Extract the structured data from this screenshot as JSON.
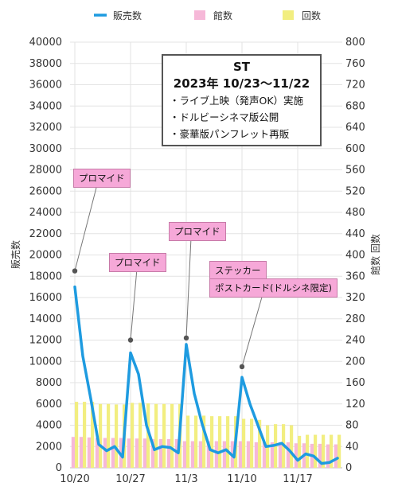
{
  "chart_data": {
    "type": "bar+line",
    "title": "ST",
    "subtitle": "2023年 10/23〜11/22",
    "notes": [
      "・ライブ上映（発声OK）実施",
      "・ドルビーシネマ版公開",
      "・豪華版パンフレット再販"
    ],
    "ylabel_left": "販売数",
    "ylabel_right": "館数 回数",
    "ylim_left": [
      0,
      40000
    ],
    "ylim_right": [
      0,
      800
    ],
    "yticks_left": [
      "0",
      "2000",
      "4000",
      "6000",
      "8000",
      "10000",
      "12000",
      "14000",
      "16000",
      "18000",
      "20000",
      "22000",
      "24000",
      "26000",
      "28000",
      "30000",
      "32000",
      "34000",
      "36000",
      "38000",
      "40000"
    ],
    "yticks_right": [
      "0",
      "40",
      "80",
      "120",
      "160",
      "200",
      "240",
      "280",
      "320",
      "360",
      "400",
      "440",
      "480",
      "520",
      "560",
      "600",
      "640",
      "680",
      "720",
      "760",
      "800"
    ],
    "x_tick_labels": [
      {
        "day": 0,
        "label": "10/20"
      },
      {
        "day": 7,
        "label": "10/27"
      },
      {
        "day": 14,
        "label": "11/3"
      },
      {
        "day": 21,
        "label": "11/10"
      },
      {
        "day": 28,
        "label": "11/17"
      }
    ],
    "x_day_range": [
      0,
      33
    ],
    "legend": [
      {
        "name": "販売数",
        "color": "#1e9be0",
        "kind": "line"
      },
      {
        "name": "館数",
        "color": "#f6b8d8",
        "kind": "bar"
      },
      {
        "name": "回数",
        "color": "#f2ee80",
        "kind": "bar"
      }
    ],
    "legend_position": "top",
    "grid": true,
    "series": [
      {
        "name": "販売数",
        "axis": "left",
        "color": "#1e9be0",
        "points": [
          [
            0,
            17000
          ],
          [
            1,
            10500
          ],
          [
            2,
            6500
          ],
          [
            3,
            2200
          ],
          [
            4,
            1600
          ],
          [
            5,
            2000
          ],
          [
            6,
            1000
          ],
          [
            7,
            10800
          ],
          [
            8,
            8800
          ],
          [
            9,
            4000
          ],
          [
            10,
            1700
          ],
          [
            11,
            2000
          ],
          [
            12,
            1900
          ],
          [
            13,
            1400
          ],
          [
            14,
            11600
          ],
          [
            15,
            7000
          ],
          [
            16,
            4100
          ],
          [
            17,
            1700
          ],
          [
            18,
            1400
          ],
          [
            19,
            1700
          ],
          [
            20,
            1000
          ],
          [
            21,
            8500
          ],
          [
            22,
            6000
          ],
          [
            23,
            4000
          ],
          [
            24,
            2000
          ],
          [
            25,
            2100
          ],
          [
            26,
            2300
          ],
          [
            27,
            1600
          ],
          [
            28,
            700
          ],
          [
            29,
            1300
          ],
          [
            30,
            1100
          ],
          [
            31,
            400
          ],
          [
            32,
            500
          ],
          [
            33,
            900
          ]
        ]
      },
      {
        "name": "館数",
        "axis": "right",
        "color": "#f6b8d8",
        "values": [
          58,
          58,
          57,
          56,
          56,
          56,
          56,
          55,
          55,
          55,
          54,
          54,
          54,
          54,
          50,
          50,
          50,
          50,
          50,
          50,
          50,
          50,
          50,
          48,
          48,
          48,
          48,
          48,
          46,
          46,
          45,
          45,
          44,
          44
        ]
      },
      {
        "name": "回数",
        "axis": "right",
        "color": "#f2ee80",
        "values": [
          124,
          124,
          124,
          120,
          120,
          119,
          119,
          122,
          122,
          121,
          120,
          120,
          120,
          120,
          98,
          98,
          98,
          97,
          97,
          97,
          97,
          92,
          92,
          90,
          80,
          82,
          82,
          80,
          60,
          62,
          62,
          62,
          62,
          62
        ]
      }
    ],
    "annotations": [
      {
        "text": "プロマイド",
        "day": 0,
        "value": 18500
      },
      {
        "text": "プロマイド",
        "day": 10,
        "value": 12000
      },
      {
        "text": "プロマイド",
        "day": 20,
        "value": 12200
      },
      {
        "text": "ステッカー",
        "day": 31,
        "value": 9500
      },
      {
        "text": "ポストカード(ドルシネ限定)",
        "day": 31,
        "value": 9500
      }
    ]
  }
}
